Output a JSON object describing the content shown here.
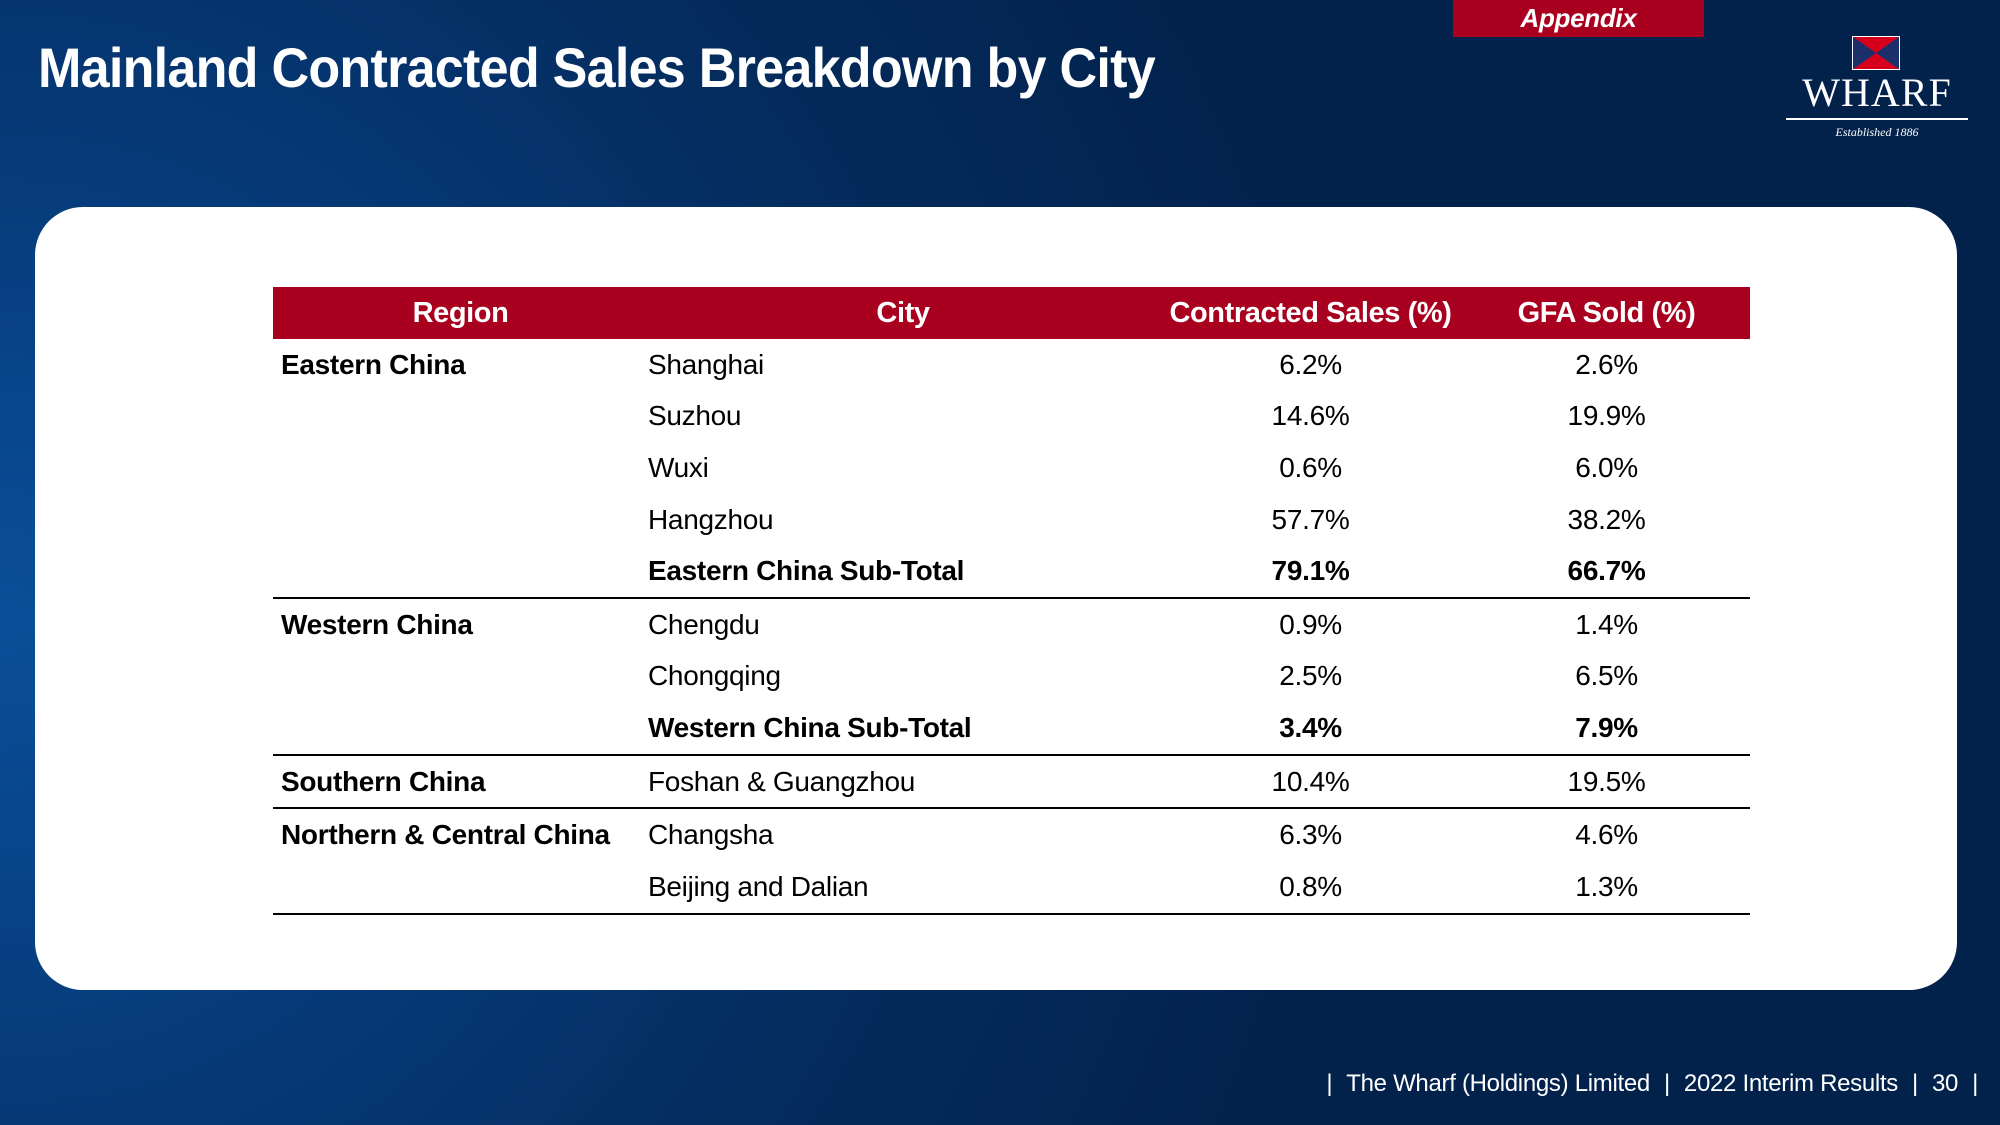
{
  "header": {
    "appendix_label": "Appendix",
    "title": "Mainland Contracted Sales Breakdown by City"
  },
  "logo": {
    "name": "WHARF",
    "tagline": "Established 1886",
    "colors": {
      "red": "#d6001c",
      "navy": "#1b2f6b"
    }
  },
  "table": {
    "columns": [
      "Region",
      "City",
      "Contracted Sales (%)",
      "GFA Sold (%)"
    ],
    "rows": [
      {
        "region": "Eastern China",
        "city": "Shanghai",
        "sales": "6.2%",
        "gfa": "2.6%",
        "subtotal": false,
        "group_end": false
      },
      {
        "region": "",
        "city": "Suzhou",
        "sales": "14.6%",
        "gfa": "19.9%",
        "subtotal": false,
        "group_end": false
      },
      {
        "region": "",
        "city": "Wuxi",
        "sales": "0.6%",
        "gfa": "6.0%",
        "subtotal": false,
        "group_end": false
      },
      {
        "region": "",
        "city": "Hangzhou",
        "sales": "57.7%",
        "gfa": "38.2%",
        "subtotal": false,
        "group_end": false
      },
      {
        "region": "",
        "city": "Eastern China Sub-Total",
        "sales": "79.1%",
        "gfa": "66.7%",
        "subtotal": true,
        "group_end": true
      },
      {
        "region": "Western China",
        "city": "Chengdu",
        "sales": "0.9%",
        "gfa": "1.4%",
        "subtotal": false,
        "group_end": false
      },
      {
        "region": "",
        "city": "Chongqing",
        "sales": "2.5%",
        "gfa": "6.5%",
        "subtotal": false,
        "group_end": false
      },
      {
        "region": "",
        "city": "Western China Sub-Total",
        "sales": "3.4%",
        "gfa": "7.9%",
        "subtotal": true,
        "group_end": true
      },
      {
        "region": "Southern China",
        "city": "Foshan & Guangzhou",
        "sales": "10.4%",
        "gfa": "19.5%",
        "subtotal": false,
        "group_end": true
      },
      {
        "region": "Northern & Central China",
        "city": "Changsha",
        "sales": "6.3%",
        "gfa": "4.6%",
        "subtotal": false,
        "group_end": false
      },
      {
        "region": "",
        "city": "Beijing and Dalian",
        "sales": "0.8%",
        "gfa": "1.3%",
        "subtotal": false,
        "group_end": true
      }
    ]
  },
  "footer": {
    "company": "The Wharf (Holdings) Limited",
    "report": "2022 Interim Results",
    "page": "30",
    "separator": "|"
  },
  "colors": {
    "accent_red": "#a8001e",
    "background_navy": "#042a5a"
  }
}
